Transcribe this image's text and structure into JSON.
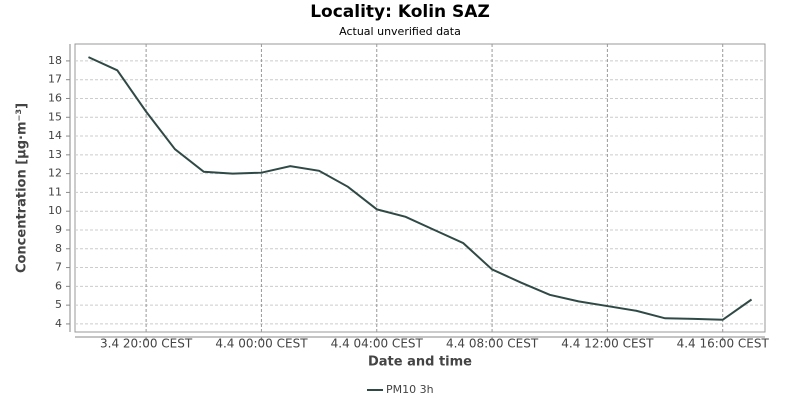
{
  "chart_data": {
    "type": "line",
    "title": "Locality: Kolin SAZ",
    "subtitle": "Actual unverified data",
    "x_label": "Date and time",
    "y_label": "Concentration [µg·m⁻³]",
    "x": [
      "3.4 18:00",
      "3.4 19:00",
      "3.4 20:00",
      "3.4 21:00",
      "3.4 22:00",
      "3.4 23:00",
      "4.4 00:00",
      "4.4 01:00",
      "4.4 02:00",
      "4.4 03:00",
      "4.4 04:00",
      "4.4 05:00",
      "4.4 06:00",
      "4.4 07:00",
      "4.4 08:00",
      "4.4 09:00",
      "4.4 10:00",
      "4.4 11:00",
      "4.4 12:00",
      "4.4 13:00",
      "4.4 14:00",
      "4.4 15:00",
      "4.4 16:00",
      "4.4 17:00"
    ],
    "series": [
      {
        "name": "PM10 3h",
        "color": "#2f4a45",
        "values": [
          18.2,
          17.5,
          15.3,
          13.3,
          12.1,
          12.0,
          12.05,
          12.4,
          12.15,
          11.3,
          10.1,
          9.7,
          9.0,
          8.3,
          6.9,
          6.2,
          5.55,
          5.2,
          4.95,
          4.7,
          4.3,
          4.27,
          4.22,
          5.3
        ]
      }
    ],
    "xlim": [
      "3.4 17:32",
      "4.4 17:28"
    ],
    "xticks": [
      {
        "value": "3.4 20:00",
        "label": "3.4 20:00 CEST"
      },
      {
        "value": "4.4 00:00",
        "label": "4.4 00:00 CEST"
      },
      {
        "value": "4.4 04:00",
        "label": "4.4 04:00 CEST"
      },
      {
        "value": "4.4 08:00",
        "label": "4.4 08:00 CEST"
      },
      {
        "value": "4.4 12:00",
        "label": "4.4 12:00 CEST"
      },
      {
        "value": "4.4 16:00",
        "label": "4.4 16:00 CEST"
      }
    ],
    "ylim": [
      3.57,
      18.9
    ],
    "yticks": [
      4,
      5,
      6,
      7,
      8,
      9,
      10,
      11,
      12,
      13,
      14,
      15,
      16,
      17,
      18
    ],
    "grid": true
  }
}
